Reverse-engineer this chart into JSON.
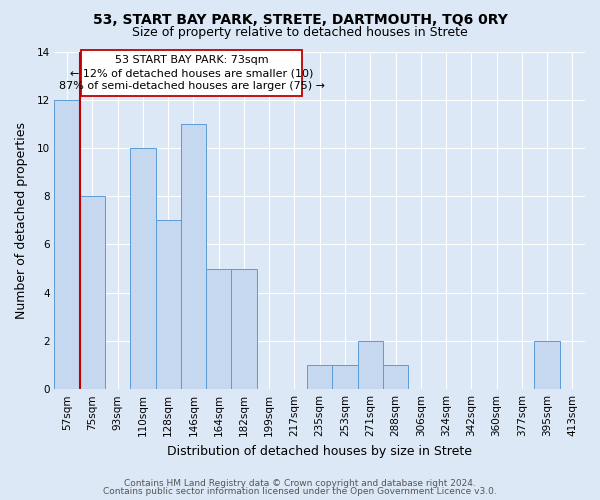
{
  "title": "53, START BAY PARK, STRETE, DARTMOUTH, TQ6 0RY",
  "subtitle": "Size of property relative to detached houses in Strete",
  "xlabel": "Distribution of detached houses by size in Strete",
  "ylabel": "Number of detached properties",
  "bar_labels": [
    "57sqm",
    "75sqm",
    "93sqm",
    "110sqm",
    "128sqm",
    "146sqm",
    "164sqm",
    "182sqm",
    "199sqm",
    "217sqm",
    "235sqm",
    "253sqm",
    "271sqm",
    "288sqm",
    "306sqm",
    "324sqm",
    "342sqm",
    "360sqm",
    "377sqm",
    "395sqm",
    "413sqm"
  ],
  "bar_heights": [
    12,
    8,
    0,
    10,
    7,
    11,
    5,
    5,
    0,
    0,
    1,
    1,
    2,
    1,
    0,
    0,
    0,
    0,
    0,
    2,
    0
  ],
  "bar_color": "#c5d8f0",
  "bar_edge_color": "#5b9bd5",
  "vline_x": 1.0,
  "vline_color": "#c00000",
  "annotation_text_line1": "53 START BAY PARK: 73sqm",
  "annotation_text_line2": "← 12% of detached houses are smaller (10)",
  "annotation_text_line3": "87% of semi-detached houses are larger (75) →",
  "ylim": [
    0,
    14
  ],
  "yticks": [
    0,
    2,
    4,
    6,
    8,
    10,
    12,
    14
  ],
  "footer_line1": "Contains HM Land Registry data © Crown copyright and database right 2024.",
  "footer_line2": "Contains public sector information licensed under the Open Government Licence v3.0.",
  "bg_color": "#dce8f5",
  "plot_bg_color": "#dce8f5",
  "title_fontsize": 10,
  "subtitle_fontsize": 9,
  "axis_label_fontsize": 9,
  "tick_fontsize": 7.5,
  "annotation_fontsize": 8,
  "footer_fontsize": 6.5
}
